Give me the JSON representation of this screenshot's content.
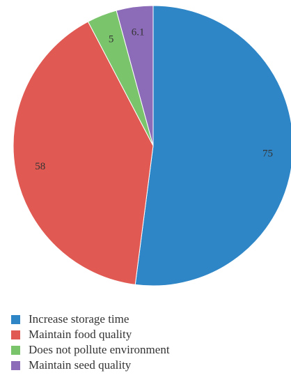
{
  "chart_data": {
    "type": "pie",
    "title": "",
    "slices": [
      {
        "label": "Increase storage time",
        "value": 75,
        "value_label": "75",
        "color": "#2e86c7"
      },
      {
        "label": "Maintain food quality",
        "value": 58,
        "value_label": "58",
        "color": "#e05a53"
      },
      {
        "label": "Does not pollute environment",
        "value": 5,
        "value_label": "5",
        "color": "#7ac46b"
      },
      {
        "label": "Maintain seed quality",
        "value": 6.1,
        "value_label": "6.1",
        "color": "#8c6bb8"
      }
    ],
    "start_angle_deg": 0,
    "direction": "clockwise",
    "legend_position": "bottom-left"
  }
}
